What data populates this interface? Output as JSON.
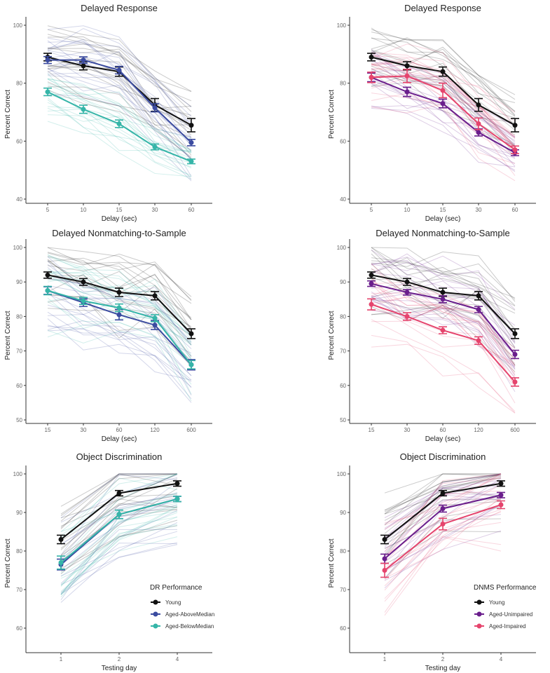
{
  "colors": {
    "Young": "#111111",
    "Aged-AboveMedian": "#3B4BA0",
    "Aged-BelowMedian": "#35B5A8",
    "Aged-Unimpaired": "#6A1E8C",
    "Aged-Impaired": "#E5446D"
  },
  "chart_data": [
    {
      "type": "line",
      "title": "Delayed Response",
      "xlabel": "Delay (sec)",
      "ylabel": "Percent Correct",
      "categories": [
        "5",
        "10",
        "15",
        "30",
        "60"
      ],
      "ylim": [
        40,
        100
      ],
      "yticks": [
        40,
        60,
        80,
        100
      ],
      "series": [
        {
          "name": "Young",
          "values": [
            89,
            86,
            84,
            72.5,
            65.5
          ],
          "se": [
            1.3,
            1.4,
            1.6,
            2.2,
            2.3
          ]
        },
        {
          "name": "Aged-AboveMedian",
          "values": [
            88,
            88,
            84.5,
            71.5,
            59.5
          ],
          "se": [
            1.2,
            1.1,
            1.3,
            1.4,
            1.1
          ]
        },
        {
          "name": "Aged-BelowMedian",
          "values": [
            77,
            71,
            66,
            58,
            53
          ],
          "se": [
            1.3,
            1.4,
            1.3,
            1.0,
            0.8
          ]
        }
      ]
    },
    {
      "type": "line",
      "title": "Delayed Response",
      "xlabel": "Delay (sec)",
      "ylabel": "Percent Correct",
      "categories": [
        "5",
        "10",
        "15",
        "30",
        "60"
      ],
      "ylim": [
        40,
        100
      ],
      "yticks": [
        40,
        60,
        80,
        100
      ],
      "series": [
        {
          "name": "Young",
          "values": [
            89,
            86,
            84,
            72.5,
            65.5
          ],
          "se": [
            1.3,
            1.4,
            1.6,
            2.2,
            2.3
          ]
        },
        {
          "name": "Aged-Unimpaired",
          "values": [
            82,
            77,
            73,
            63,
            56
          ],
          "se": [
            1.5,
            1.6,
            1.5,
            1.2,
            1.0
          ]
        },
        {
          "name": "Aged-Impaired",
          "values": [
            82,
            82.5,
            77.5,
            66,
            57
          ],
          "se": [
            1.8,
            2.3,
            2.5,
            2.0,
            1.3
          ]
        }
      ]
    },
    {
      "type": "line",
      "title": "Delayed Nonmatching-to-Sample",
      "xlabel": "Delay (sec)",
      "ylabel": "Percent Correct",
      "categories": [
        "15",
        "30",
        "60",
        "120",
        "600"
      ],
      "ylim": [
        50,
        100
      ],
      "yticks": [
        50,
        60,
        70,
        80,
        90,
        100
      ],
      "series": [
        {
          "name": "Young",
          "values": [
            92,
            90,
            87,
            86,
            75
          ],
          "se": [
            0.9,
            1.0,
            1.2,
            1.2,
            1.4
          ]
        },
        {
          "name": "Aged-AboveMedian",
          "values": [
            87.5,
            84,
            80.5,
            77.5,
            66
          ],
          "se": [
            1.1,
            1.1,
            1.5,
            1.3,
            1.5
          ]
        },
        {
          "name": "Aged-BelowMedian",
          "values": [
            87.5,
            84.5,
            82.5,
            79.5,
            66
          ],
          "se": [
            1.2,
            1.0,
            1.1,
            1.0,
            1.2
          ]
        }
      ]
    },
    {
      "type": "line",
      "title": "Delayed Nonmatching-to-Sample",
      "xlabel": "Delay (sec)",
      "ylabel": "Percent Correct",
      "categories": [
        "15",
        "30",
        "60",
        "120",
        "600"
      ],
      "ylim": [
        50,
        100
      ],
      "yticks": [
        50,
        60,
        70,
        80,
        90,
        100
      ],
      "series": [
        {
          "name": "Young",
          "values": [
            92,
            90,
            87,
            86,
            75
          ],
          "se": [
            0.9,
            1.0,
            1.2,
            1.2,
            1.4
          ]
        },
        {
          "name": "Aged-Unimpaired",
          "values": [
            89.5,
            87,
            85,
            82,
            69
          ],
          "se": [
            0.8,
            0.8,
            1.0,
            0.9,
            1.2
          ]
        },
        {
          "name": "Aged-Impaired",
          "values": [
            83.5,
            80,
            76,
            73,
            61
          ],
          "se": [
            1.6,
            1.1,
            1.0,
            1.1,
            1.2
          ]
        }
      ]
    },
    {
      "type": "line",
      "title": "Object Discrimination",
      "xlabel": "Testing day",
      "ylabel": "Percent Correct",
      "categories": [
        "1",
        "2",
        "4"
      ],
      "ylim": [
        55,
        100
      ],
      "yticks": [
        60,
        70,
        80,
        90,
        100
      ],
      "legend": {
        "title": "DR Performance",
        "position": "bottom-right"
      },
      "series": [
        {
          "name": "Young",
          "values": [
            83,
            95,
            97.5
          ],
          "se": [
            1.1,
            0.7,
            0.7
          ]
        },
        {
          "name": "Aged-AboveMedian",
          "values": [
            76.5,
            89.5,
            93.5
          ],
          "se": [
            1.4,
            1.1,
            0.7
          ]
        },
        {
          "name": "Aged-BelowMedian",
          "values": [
            77,
            89.5,
            93.5
          ],
          "se": [
            1.7,
            1.1,
            0.7
          ]
        }
      ]
    },
    {
      "type": "line",
      "title": "Object Discrimination",
      "xlabel": "Testing day",
      "ylabel": "Percent Correct",
      "categories": [
        "1",
        "2",
        "4"
      ],
      "ylim": [
        55,
        100
      ],
      "yticks": [
        60,
        70,
        80,
        90,
        100
      ],
      "legend": {
        "title": "DNMS Performance",
        "position": "bottom-right"
      },
      "series": [
        {
          "name": "Young",
          "values": [
            83,
            95,
            97.5
          ],
          "se": [
            1.1,
            0.7,
            0.7
          ]
        },
        {
          "name": "Aged-Unimpaired",
          "values": [
            78,
            91,
            94.5
          ],
          "se": [
            1.2,
            0.9,
            0.7
          ]
        },
        {
          "name": "Aged-Impaired",
          "values": [
            75,
            87,
            92
          ],
          "se": [
            1.8,
            1.5,
            1.0
          ]
        }
      ]
    }
  ]
}
